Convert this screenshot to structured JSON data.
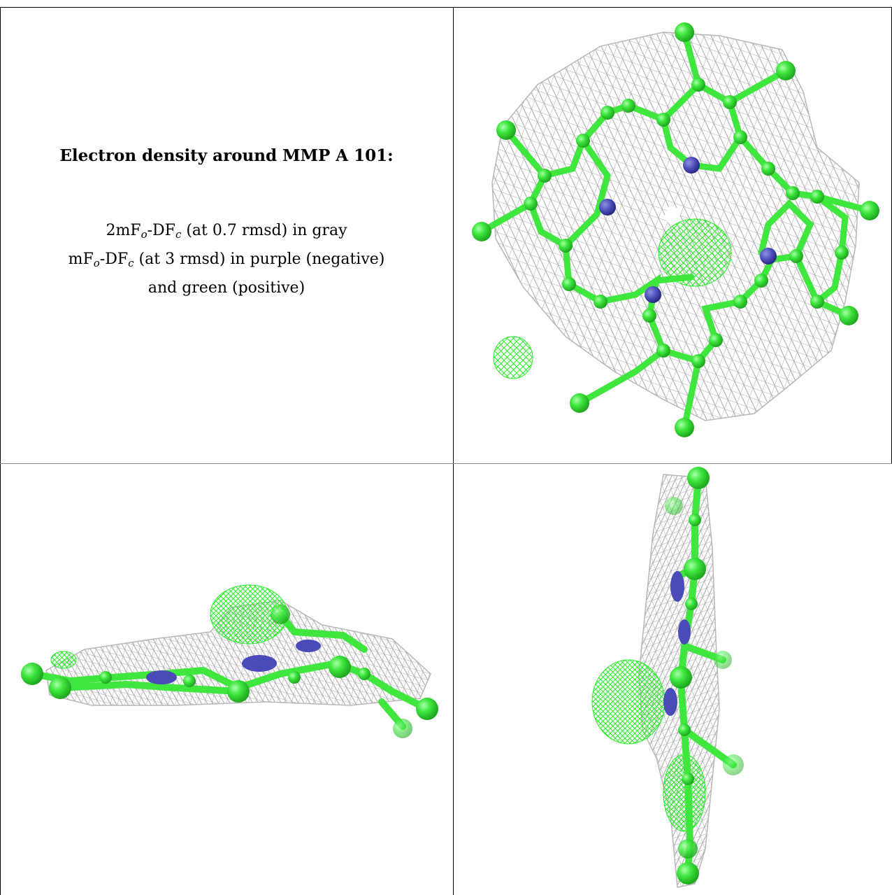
{
  "caption": {
    "title": "Electron density around MMP A 101:",
    "line1": {
      "a": "2mF",
      "b": "o",
      "c": "-DF",
      "d": "c",
      "e": " (at 0.7 rmsd) in gray"
    },
    "line2": {
      "a": "mF",
      "b": "o",
      "c": "-DF",
      "d": "c",
      "e": " (at 3 rmsd) in purple (negative)"
    },
    "line3": "and green (positive)"
  },
  "colors": {
    "mesh_gray": "#b0b0b0",
    "atom_carbon": "#3ee63e",
    "atom_nitrogen": "#4a4ab8",
    "positive_density": "#22ee22",
    "negative_density": "#8a2be2"
  },
  "panels": [
    {
      "name": "top-view",
      "icon": "molecule-top-view"
    },
    {
      "name": "side-view-horizontal",
      "icon": "molecule-side-view"
    },
    {
      "name": "side-view-vertical",
      "icon": "molecule-edge-view"
    }
  ]
}
